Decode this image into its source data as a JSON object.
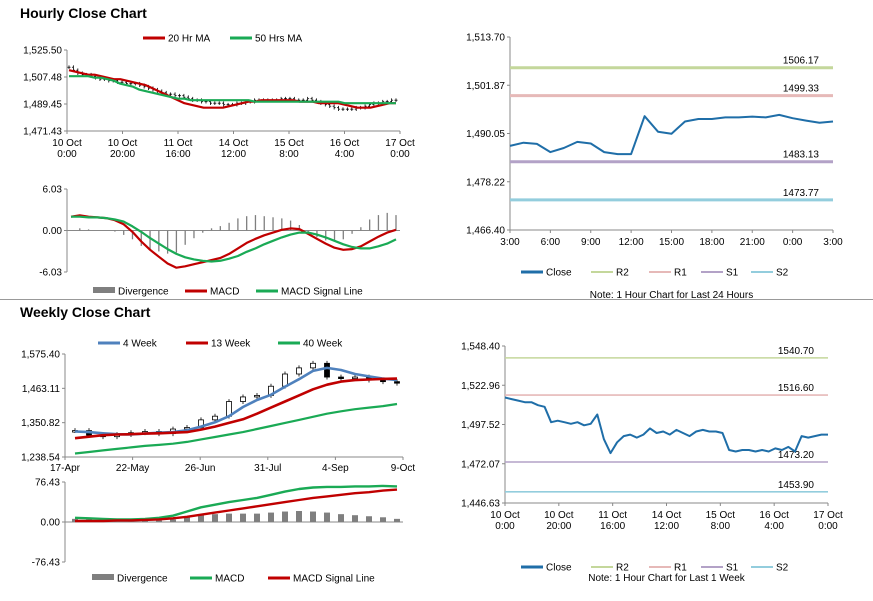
{
  "hourly": {
    "title": "Hourly Close Chart",
    "price_chart": {
      "type": "candlestick",
      "legend": [
        "20 Hr MA",
        "50 Hrs MA"
      ],
      "yticks": [
        "1,525.50",
        "1,507.48",
        "1,489.45",
        "1,471.43"
      ],
      "ylim": [
        1471.43,
        1525.5
      ],
      "xticks": [
        "10 Oct\n0:00",
        "10 Oct\n20:00",
        "11 Oct\n16:00",
        "14 Oct\n12:00",
        "15 Oct\n8:00",
        "16 Oct\n4:00",
        "17 Oct\n0:00"
      ],
      "close": [
        1514,
        1512,
        1510,
        1509,
        1509,
        1508,
        1507,
        1506,
        1506,
        1505,
        1505,
        1504,
        1504,
        1503,
        1503,
        1503,
        1502,
        1501,
        1500,
        1499,
        1498,
        1497,
        1496,
        1496,
        1495,
        1495,
        1494,
        1493,
        1492,
        1492,
        1491,
        1491,
        1490,
        1490,
        1490,
        1489,
        1489,
        1489,
        1490,
        1490,
        1491,
        1491,
        1492,
        1492,
        1492,
        1492,
        1492,
        1492,
        1493,
        1493,
        1493,
        1492,
        1492,
        1492,
        1493,
        1492,
        1491,
        1490,
        1489,
        1488,
        1487,
        1486,
        1486,
        1486,
        1486,
        1487,
        1487,
        1488,
        1489,
        1490,
        1490,
        1491,
        1491,
        1492,
        1492
      ],
      "ma20": [
        1512,
        1511,
        1510,
        1509,
        1509,
        1508,
        1507,
        1506,
        1506,
        1505,
        1504,
        1503,
        1502,
        1500,
        1498,
        1496,
        1494,
        1492,
        1490,
        1489,
        1488,
        1487,
        1487,
        1487,
        1487,
        1488,
        1489,
        1490,
        1491,
        1491,
        1492,
        1492,
        1492,
        1492,
        1492,
        1492,
        1491,
        1491,
        1491,
        1490,
        1490,
        1490,
        1490,
        1489,
        1488,
        1487,
        1487,
        1487,
        1488,
        1489,
        1490,
        1490
      ],
      "ma50": [
        1508,
        1508,
        1508,
        1508,
        1507,
        1507,
        1506,
        1505,
        1503,
        1502,
        1501,
        1499,
        1498,
        1497,
        1496,
        1495,
        1494,
        1493,
        1493,
        1492,
        1492,
        1492,
        1492,
        1492,
        1492,
        1492,
        1492,
        1492,
        1492,
        1491,
        1491,
        1491,
        1491,
        1491,
        1491,
        1491,
        1491,
        1491,
        1491,
        1491,
        1491,
        1491,
        1491,
        1490,
        1490,
        1490,
        1490,
        1490,
        1490,
        1490,
        1490,
        1490
      ]
    },
    "macd_chart": {
      "type": "line",
      "yticks": [
        "6.03",
        "0.00",
        "-6.03"
      ],
      "ylim": [
        -6.03,
        6.03
      ],
      "legend": [
        "Divergence",
        "MACD",
        "MACD Signal Line"
      ],
      "macd": [
        2.0,
        2.2,
        2.0,
        1.9,
        1.8,
        1.5,
        0.9,
        -0.2,
        -1.6,
        -2.8,
        -3.8,
        -4.8,
        -5.4,
        -5.2,
        -4.9,
        -4.6,
        -4.3,
        -4.0,
        -3.4,
        -2.6,
        -1.8,
        -1.2,
        -0.7,
        -0.3,
        0.1,
        0.3,
        0.2,
        -0.5,
        -1.2,
        -1.9,
        -2.5,
        -2.8,
        -2.7,
        -2.3,
        -1.6,
        -0.9,
        -0.3,
        0.1
      ],
      "signal": [
        2.0,
        2.0,
        1.9,
        1.9,
        1.8,
        1.6,
        1.3,
        0.6,
        -0.2,
        -1.1,
        -1.9,
        -2.7,
        -3.4,
        -3.9,
        -4.2,
        -4.4,
        -4.5,
        -4.4,
        -4.1,
        -3.7,
        -3.1,
        -2.6,
        -2.0,
        -1.5,
        -1.0,
        -0.6,
        -0.3,
        -0.3,
        -0.6,
        -1.0,
        -1.5,
        -2.0,
        -2.4,
        -2.6,
        -2.6,
        -2.3,
        -1.9,
        -1.3
      ]
    }
  },
  "hourly_levels": {
    "type": "line",
    "yticks": [
      "1,513.70",
      "1,501.87",
      "1,490.05",
      "1,478.22",
      "1,466.40"
    ],
    "ylim": [
      1466.4,
      1513.7
    ],
    "xticks": [
      "3:00",
      "6:00",
      "9:00",
      "12:00",
      "15:00",
      "18:00",
      "21:00",
      "0:00",
      "3:00"
    ],
    "close": [
      1487.0,
      1487.8,
      1487.5,
      1485.5,
      1486.5,
      1488.0,
      1487.6,
      1485.5,
      1485.0,
      1485.0,
      1494.3,
      1490.5,
      1490.0,
      1493.0,
      1493.6,
      1493.6,
      1494.0,
      1494.0,
      1494.2,
      1494.0,
      1494.6,
      1493.8,
      1493.2,
      1492.7,
      1493.0
    ],
    "levels": [
      {
        "name": "R2",
        "label": "1506.17",
        "value": 1506.17,
        "color": "#c4d79b"
      },
      {
        "name": "R1",
        "label": "1499.33",
        "value": 1499.33,
        "color": "#e6b9b8"
      },
      {
        "name": "S1",
        "label": "1483.13",
        "value": 1483.13,
        "color": "#b3a2c7"
      },
      {
        "name": "S2",
        "label": "1473.77",
        "value": 1473.77,
        "color": "#93cddd"
      }
    ],
    "legend": [
      "Close",
      "R2",
      "R1",
      "S1",
      "S2"
    ],
    "note": "Note: 1 Hour Chart for Last 24 Hours"
  },
  "weekly": {
    "title": "Weekly Close Chart",
    "price_chart": {
      "type": "candlestick",
      "legend": [
        "4 Week",
        "13 Week",
        "40 Week"
      ],
      "yticks": [
        "1,575.40",
        "1,463.11",
        "1,350.82",
        "1,238.54"
      ],
      "ylim": [
        1238.54,
        1575.4
      ],
      "xticks": [
        "17-Apr",
        "22-May",
        "26-Jun",
        "31-Jul",
        "4-Sep",
        "9-Oct"
      ],
      "close": [
        1325,
        1310,
        1305,
        1312,
        1318,
        1322,
        1315,
        1330,
        1335,
        1360,
        1372,
        1420,
        1435,
        1440,
        1470,
        1510,
        1530,
        1545,
        1500,
        1495,
        1500,
        1490,
        1485,
        1480
      ],
      "ma4": [
        1322,
        1320,
        1316,
        1313,
        1312,
        1315,
        1318,
        1320,
        1326,
        1338,
        1352,
        1372,
        1402,
        1425,
        1442,
        1468,
        1493,
        1520,
        1530,
        1523,
        1510,
        1502,
        1495,
        1490
      ],
      "ma13": [
        1300,
        1305,
        1310,
        1312,
        1313,
        1315,
        1316,
        1318,
        1320,
        1328,
        1338,
        1350,
        1362,
        1380,
        1400,
        1420,
        1440,
        1460,
        1475,
        1485,
        1490,
        1492,
        1494,
        1495
      ],
      "ma40": [
        1250,
        1255,
        1260,
        1265,
        1270,
        1275,
        1278,
        1282,
        1288,
        1296,
        1304,
        1312,
        1320,
        1330,
        1340,
        1350,
        1360,
        1370,
        1380,
        1388,
        1395,
        1400,
        1405,
        1412
      ]
    },
    "macd_chart": {
      "type": "line",
      "yticks": [
        "76.43",
        "0.00",
        "-76.43"
      ],
      "ylim": [
        -76.43,
        76.43
      ],
      "legend": [
        "Divergence",
        "MACD",
        "MACD Signal Line"
      ],
      "macd": [
        8,
        7,
        6,
        5,
        5,
        6,
        8,
        12,
        20,
        28,
        33,
        38,
        42,
        46,
        52,
        58,
        63,
        66,
        67,
        67,
        68,
        68,
        69,
        68
      ],
      "signal": [
        2,
        2,
        2,
        3,
        3,
        4,
        5,
        7,
        10,
        14,
        18,
        22,
        26,
        30,
        34,
        38,
        42,
        46,
        49,
        52,
        55,
        57,
        60,
        62
      ],
      "divergence": [
        6,
        5,
        4,
        2,
        2,
        2,
        3,
        5,
        10,
        14,
        15,
        16,
        16,
        16,
        18,
        20,
        21,
        20,
        18,
        15,
        13,
        11,
        9,
        6
      ]
    }
  },
  "weekly_levels": {
    "type": "line",
    "yticks": [
      "1,548.40",
      "1,522.96",
      "1,497.52",
      "1,472.07",
      "1,446.63"
    ],
    "ylim": [
      1446.63,
      1548.4
    ],
    "xticks": [
      "10 Oct\n0:00",
      "10 Oct\n20:00",
      "11 Oct\n16:00",
      "14 Oct\n12:00",
      "15 Oct\n8:00",
      "16 Oct\n4:00",
      "17 Oct\n0:00"
    ],
    "close": [
      1515,
      1514,
      1513,
      1512,
      1512,
      1510,
      1509,
      1499,
      1500,
      1499,
      1498,
      1499,
      1497,
      1498,
      1504,
      1488,
      1479,
      1486,
      1490,
      1491,
      1489,
      1491,
      1495,
      1492,
      1493,
      1491,
      1494,
      1492,
      1490,
      1493,
      1494,
      1493,
      1493,
      1492,
      1481,
      1480,
      1481,
      1481,
      1480,
      1481,
      1480,
      1482,
      1481,
      1483,
      1480,
      1490,
      1489,
      1490,
      1491,
      1491
    ],
    "levels": [
      {
        "name": "R2",
        "label": "1540.70",
        "value": 1540.7,
        "color": "#c4d79b"
      },
      {
        "name": "R1",
        "label": "1516.60",
        "value": 1516.6,
        "color": "#e6b9b8"
      },
      {
        "name": "S1",
        "label": "1473.20",
        "value": 1473.2,
        "color": "#b3a2c7"
      },
      {
        "name": "S2",
        "label": "1453.90",
        "value": 1453.9,
        "color": "#93cddd"
      }
    ],
    "legend": [
      "Close",
      "R2",
      "R1",
      "S1",
      "S2"
    ],
    "note": "Note: 1 Hour Chart for Last 1 Week"
  },
  "colors": {
    "ma_red": "#c00000",
    "ma_green": "#1aaa55",
    "ma_blue": "#4f81bd",
    "close_blue": "#1f6ea8",
    "divergence": "#7f7f7f"
  }
}
